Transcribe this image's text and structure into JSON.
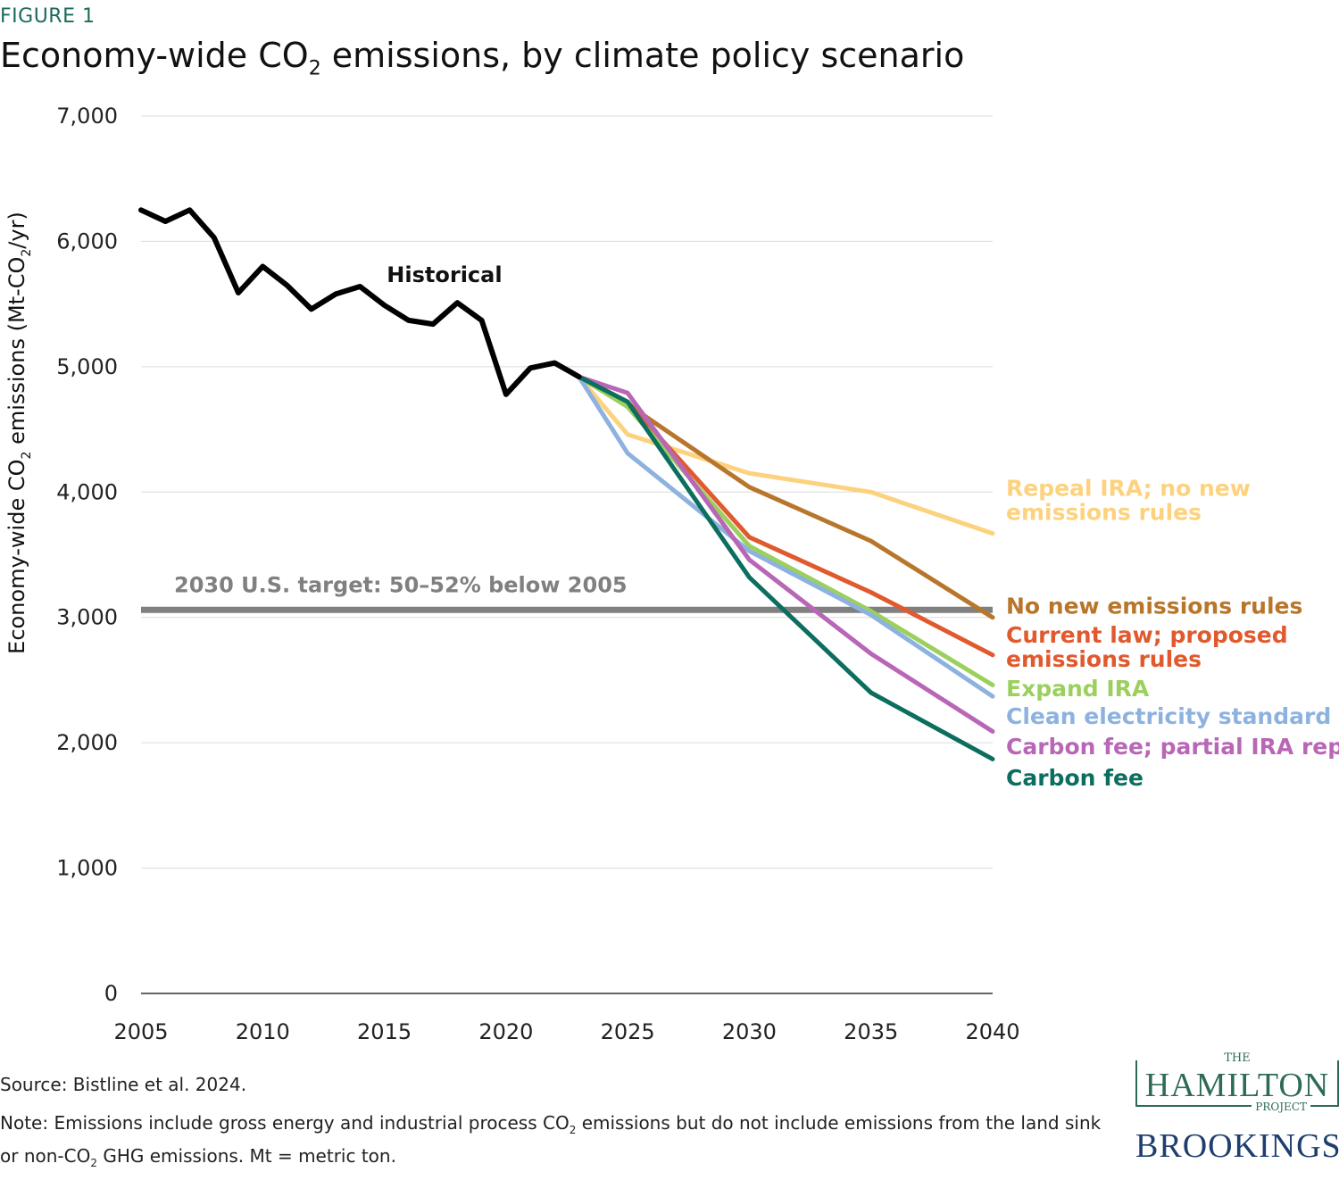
{
  "header": {
    "eyebrow": "FIGURE 1",
    "title_pre": "Economy-wide CO",
    "title_sub": "2",
    "title_post": " emissions, by climate policy scenario"
  },
  "footer": {
    "source": "Source: Bistline et al. 2024.",
    "note_a": "Note: Emissions include gross energy and industrial process CO",
    "note_b": " emissions but do not include emissions from the land sink or non-CO",
    "note_c": " GHG emissions. Mt = metric ton.",
    "note_sub": "2"
  },
  "logo": {
    "the": "THE",
    "hamilton": "HAMILTON",
    "project": "PROJECT",
    "brookings": "BROOKINGS"
  },
  "chart_data": {
    "type": "line",
    "title": "Economy-wide CO2 emissions, by climate policy scenario",
    "ylabel_pre": "Economy-wide CO",
    "ylabel_mid": " emissions (Mt-CO",
    "ylabel_post": "/yr)",
    "ylabel_sub": "2",
    "xlim": [
      2005,
      2040
    ],
    "ylim": [
      0,
      7000
    ],
    "x_ticks": [
      "2005",
      "2010",
      "2015",
      "2020",
      "2025",
      "2030",
      "2035",
      "2040"
    ],
    "y_ticks": [
      "0",
      "1,000",
      "2,000",
      "3,000",
      "4,000",
      "5,000",
      "6,000",
      "7,000"
    ],
    "x_tick_values": [
      2005,
      2010,
      2015,
      2020,
      2025,
      2030,
      2035,
      2040
    ],
    "y_tick_values": [
      0,
      1000,
      2000,
      3000,
      4000,
      5000,
      6000,
      7000
    ],
    "grid": true,
    "target": {
      "label": "2030 U.S. target: 50–52% below 2005",
      "value": 3060,
      "color": "#808080"
    },
    "historical": {
      "name": "Historical",
      "color": "#000000",
      "x": [
        2005,
        2006,
        2007,
        2008,
        2009,
        2010,
        2011,
        2012,
        2013,
        2014,
        2015,
        2016,
        2017,
        2018,
        2019,
        2020,
        2021,
        2022,
        2023
      ],
      "y": [
        6250,
        6160,
        6250,
        6030,
        5590,
        5800,
        5650,
        5460,
        5580,
        5640,
        5490,
        5370,
        5340,
        5510,
        5370,
        4780,
        4990,
        5030,
        4920
      ]
    },
    "scenarios_x": [
      2023,
      2025,
      2030,
      2035,
      2040
    ],
    "series": [
      {
        "name": "Repeal IRA; no new emissions rules",
        "label_lines": [
          "Repeal IRA; no new",
          "emissions rules"
        ],
        "color": "#fdd27e",
        "values": [
          4920,
          4460,
          4150,
          4000,
          3670
        ],
        "label_y": 3970
      },
      {
        "name": "No new emissions rules",
        "label_lines": [
          "No new emissions rules"
        ],
        "color": "#b8762c",
        "values": [
          4920,
          4700,
          4040,
          3610,
          3000
        ],
        "label_y": 3030
      },
      {
        "name": "Current law; proposed emissions rules",
        "label_lines": [
          "Current law; proposed",
          "emissions rules"
        ],
        "color": "#e05a2e",
        "values": [
          4920,
          4720,
          3640,
          3200,
          2700
        ],
        "label_y": 2800
      },
      {
        "name": "Expand IRA",
        "label_lines": [
          "Expand IRA"
        ],
        "color": "#9bd05d",
        "values": [
          4920,
          4680,
          3570,
          3050,
          2460
        ],
        "label_y": 2370
      },
      {
        "name": "Clean electricity standard",
        "label_lines": [
          "Clean electricity standard"
        ],
        "color": "#8eb2df",
        "values": [
          4920,
          4310,
          3530,
          3020,
          2370
        ],
        "label_y": 2150
      },
      {
        "name": "Carbon fee; partial IRA repeal",
        "label_lines": [
          "Carbon fee; partial IRA repeal"
        ],
        "color": "#b867b6",
        "values": [
          4920,
          4790,
          3460,
          2710,
          2090
        ],
        "label_y": 1910
      },
      {
        "name": "Carbon fee",
        "label_lines": [
          "Carbon fee"
        ],
        "color": "#0c6e5e",
        "values": [
          4920,
          4720,
          3320,
          2400,
          1870
        ],
        "label_y": 1660
      }
    ]
  }
}
